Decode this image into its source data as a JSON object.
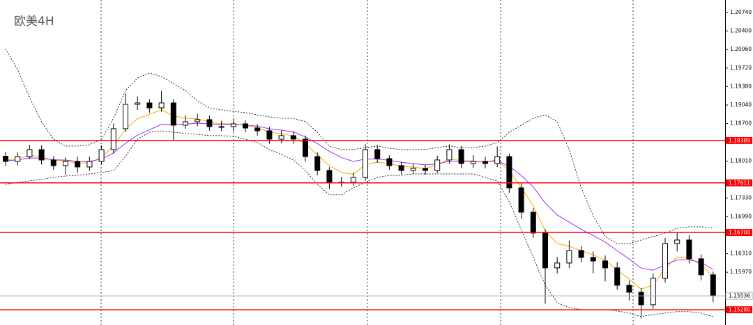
{
  "chart_data": {
    "type": "candlestick",
    "title": "欧美4H",
    "ylim": [
      1.15,
      1.2097
    ],
    "yticks": [
      {
        "value": 1.2074,
        "label": "1.20740"
      },
      {
        "value": 1.204,
        "label": "1.20400"
      },
      {
        "value": 1.2006,
        "label": "1.20060"
      },
      {
        "value": 1.1972,
        "label": "1.19720"
      },
      {
        "value": 1.1938,
        "label": "1.19380"
      },
      {
        "value": 1.1904,
        "label": "1.19040"
      },
      {
        "value": 1.187,
        "label": "1.18700"
      },
      {
        "value": 1.1801,
        "label": "1.18010"
      },
      {
        "value": 1.1733,
        "label": "1.17330"
      },
      {
        "value": 1.1699,
        "label": "1.16990"
      },
      {
        "value": 1.1631,
        "label": "1.16310"
      },
      {
        "value": 1.1597,
        "label": "1.15970"
      }
    ],
    "up_color": "#ffffff",
    "down_color": "#000000",
    "open": [
      1.181,
      1.18005,
      1.18094,
      1.18222,
      1.18031,
      1.17928,
      1.18005,
      1.17903,
      1.18005,
      1.18222,
      1.18606,
      1.19053,
      1.19079,
      1.18989,
      1.19079,
      1.1867,
      1.18733,
      1.18772,
      1.18644,
      1.18644,
      1.18695,
      1.18618,
      1.18567,
      1.18414,
      1.18478,
      1.18414,
      1.18094,
      1.17839,
      1.17622,
      1.17622,
      1.17711,
      1.18222,
      1.18056,
      1.17928,
      1.17839,
      1.17877,
      1.17839,
      1.18031,
      1.18222,
      1.17967,
      1.18005,
      1.17967,
      1.18094,
      1.17519,
      1.17072,
      1.16689,
      1.1605,
      1.16139,
      1.16369,
      1.16241,
      1.16177,
      1.1605,
      1.1573,
      1.15602,
      1.15372,
      1.15858,
      1.16497,
      1.16561,
      1.16216,
      1.15922
    ],
    "high": [
      1.1818,
      1.1817,
      1.1831,
      1.183,
      1.181,
      1.1808,
      1.1809,
      1.1809,
      1.183,
      1.187,
      1.1925,
      1.192,
      1.1915,
      1.193,
      1.1915,
      1.1885,
      1.1888,
      1.1885,
      1.1875,
      1.1878,
      1.1876,
      1.1869,
      1.1864,
      1.1857,
      1.1856,
      1.1848,
      1.1817,
      1.179,
      1.1772,
      1.178,
      1.1832,
      1.183,
      1.1812,
      1.18,
      1.1796,
      1.1795,
      1.1811,
      1.1832,
      1.1829,
      1.1812,
      1.1809,
      1.1828,
      1.1815,
      1.176,
      1.1715,
      1.1676,
      1.1625,
      1.1655,
      1.1645,
      1.1635,
      1.1628,
      1.1615,
      1.1582,
      1.1568,
      1.1595,
      1.166,
      1.167,
      1.1665,
      1.163,
      1.1598
    ],
    "low": [
      1.1792,
      1.1793,
      1.1805,
      1.1795,
      1.1785,
      1.1776,
      1.178,
      1.1783,
      1.1795,
      1.1815,
      1.1855,
      1.1895,
      1.189,
      1.1892,
      1.184,
      1.186,
      1.1865,
      1.1857,
      1.1856,
      1.1856,
      1.1854,
      1.1848,
      1.1833,
      1.1834,
      1.1833,
      1.18,
      1.1775,
      1.175,
      1.1754,
      1.1756,
      1.1765,
      1.1798,
      1.1785,
      1.1776,
      1.1777,
      1.1776,
      1.1779,
      1.1796,
      1.1788,
      1.1789,
      1.1788,
      1.179,
      1.1743,
      1.1695,
      1.166,
      1.1539,
      1.1595,
      1.1605,
      1.1615,
      1.1595,
      1.158,
      1.1565,
      1.1545,
      1.1512,
      1.153,
      1.1578,
      1.1635,
      1.1613,
      1.1582,
      1.1542
    ],
    "close": [
      1.18005,
      1.18094,
      1.18222,
      1.18031,
      1.17928,
      1.18005,
      1.17903,
      1.18005,
      1.18222,
      1.18606,
      1.19053,
      1.19079,
      1.18989,
      1.19079,
      1.1867,
      1.18733,
      1.18772,
      1.18644,
      1.18644,
      1.18695,
      1.18618,
      1.18567,
      1.18414,
      1.18478,
      1.18414,
      1.18094,
      1.17839,
      1.17622,
      1.17622,
      1.17711,
      1.18222,
      1.18056,
      1.17928,
      1.17839,
      1.17877,
      1.17839,
      1.18031,
      1.18222,
      1.17967,
      1.18005,
      1.17967,
      1.18094,
      1.17519,
      1.17072,
      1.16689,
      1.1605,
      1.16139,
      1.16369,
      1.16241,
      1.16177,
      1.1605,
      1.1573,
      1.15602,
      1.15372,
      1.15858,
      1.16497,
      1.16561,
      1.16216,
      1.15922,
      1.15536
    ],
    "lines": [
      {
        "color": "#ffa500",
        "style": "solid",
        "values": [
          1.1803,
          1.18056,
          1.18122,
          1.18085,
          1.18022,
          1.18015,
          1.1797,
          1.17984,
          1.18079,
          1.1829,
          1.18595,
          1.18789,
          1.18869,
          1.18953,
          1.1884,
          1.18797,
          1.18787,
          1.1873,
          1.18696,
          1.18696,
          1.18665,
          1.18626,
          1.18541,
          1.18516,
          1.18475,
          1.18323,
          1.18129,
          1.17926,
          1.17804,
          1.17767,
          1.17949,
          1.17992,
          1.17966,
          1.17915,
          1.179,
          1.17875,
          1.17937,
          1.18051,
          1.18018,
          1.18013,
          1.17995,
          1.18035,
          1.17829,
          1.17526,
          1.17191,
          1.16735,
          1.16497,
          1.16446,
          1.16364,
          1.16289,
          1.16193,
          1.16008,
          1.15846,
          1.15656,
          1.15737,
          1.16041,
          1.16249,
          1.16236,
          1.16111,
          1.15881
        ]
      },
      {
        "color": "#9b30ff",
        "style": "solid",
        "values": [
          1.18017,
          1.18032,
          1.1807,
          1.18062,
          1.18035,
          1.18029,
          1.18004,
          1.18004,
          1.18048,
          1.1816,
          1.18338,
          1.18486,
          1.18587,
          1.18685,
          1.18682,
          1.18692,
          1.18708,
          1.18695,
          1.18685,
          1.18687,
          1.18673,
          1.18652,
          1.18604,
          1.18579,
          1.18546,
          1.18456,
          1.18333,
          1.18191,
          1.18077,
          1.18004,
          1.18048,
          1.1805,
          1.18025,
          1.17988,
          1.17966,
          1.17941,
          1.17959,
          1.18011,
          1.18002,
          1.18003,
          1.17996,
          1.18016,
          1.17917,
          1.17748,
          1.17536,
          1.17239,
          1.17019,
          1.16889,
          1.16759,
          1.16643,
          1.16524,
          1.16365,
          1.16212,
          1.16044,
          1.16007,
          1.16105,
          1.16196,
          1.162,
          1.16144,
          1.16022
        ]
      },
      {
        "color": "#000000",
        "style": "dashed",
        "values": [
          1.20075,
          1.19692,
          1.19181,
          1.18733,
          1.18414,
          1.18286,
          1.18286,
          1.18312,
          1.18414,
          1.18797,
          1.19309,
          1.19539,
          1.19628,
          1.19564,
          1.19436,
          1.19309,
          1.19117,
          1.18989,
          1.18951,
          1.18925,
          1.189,
          1.18861,
          1.18823,
          1.18797,
          1.18797,
          1.18733,
          1.18542,
          1.18286,
          1.18222,
          1.18222,
          1.18261,
          1.18286,
          1.18248,
          1.18222,
          1.18222,
          1.18222,
          1.18261,
          1.18286,
          1.18261,
          1.18261,
          1.18286,
          1.1835,
          1.18542,
          1.1867,
          1.18797,
          1.18861,
          1.18733,
          1.18222,
          1.17519,
          1.17008,
          1.16625,
          1.16497,
          1.16497,
          1.16561,
          1.16625,
          1.16689,
          1.16778,
          1.16804,
          1.16804,
          1.16778
        ]
      },
      {
        "color": "#000000",
        "style": "dashed",
        "values": [
          1.17583,
          1.17622,
          1.17647,
          1.17673,
          1.17711,
          1.17737,
          1.17749,
          1.17775,
          1.17801,
          1.17839,
          1.18094,
          1.18414,
          1.18542,
          1.18567,
          1.18542,
          1.18516,
          1.18503,
          1.18478,
          1.18478,
          1.18465,
          1.18414,
          1.1835,
          1.18222,
          1.18133,
          1.18031,
          1.17839,
          1.17583,
          1.17392,
          1.17392,
          1.17519,
          1.17622,
          1.17711,
          1.17749,
          1.17749,
          1.17775,
          1.17775,
          1.17775,
          1.17775,
          1.17775,
          1.17775,
          1.17711,
          1.17647,
          1.17264,
          1.16753,
          1.16241,
          1.1573,
          1.15411,
          1.15321,
          1.15283,
          1.15283,
          1.15283,
          1.15257,
          1.15219,
          1.15155,
          1.15193,
          1.15219,
          1.15245,
          1.15245,
          1.15219,
          1.15155
        ]
      }
    ],
    "levels": [
      1.18389,
      1.17611,
      {
        "value": 1.167,
        "label": "1.16700"
      },
      {
        "value": 1.1528,
        "label": "1.15280"
      }
    ],
    "level_color": "#ff0000",
    "current_price": 1.15536
  }
}
